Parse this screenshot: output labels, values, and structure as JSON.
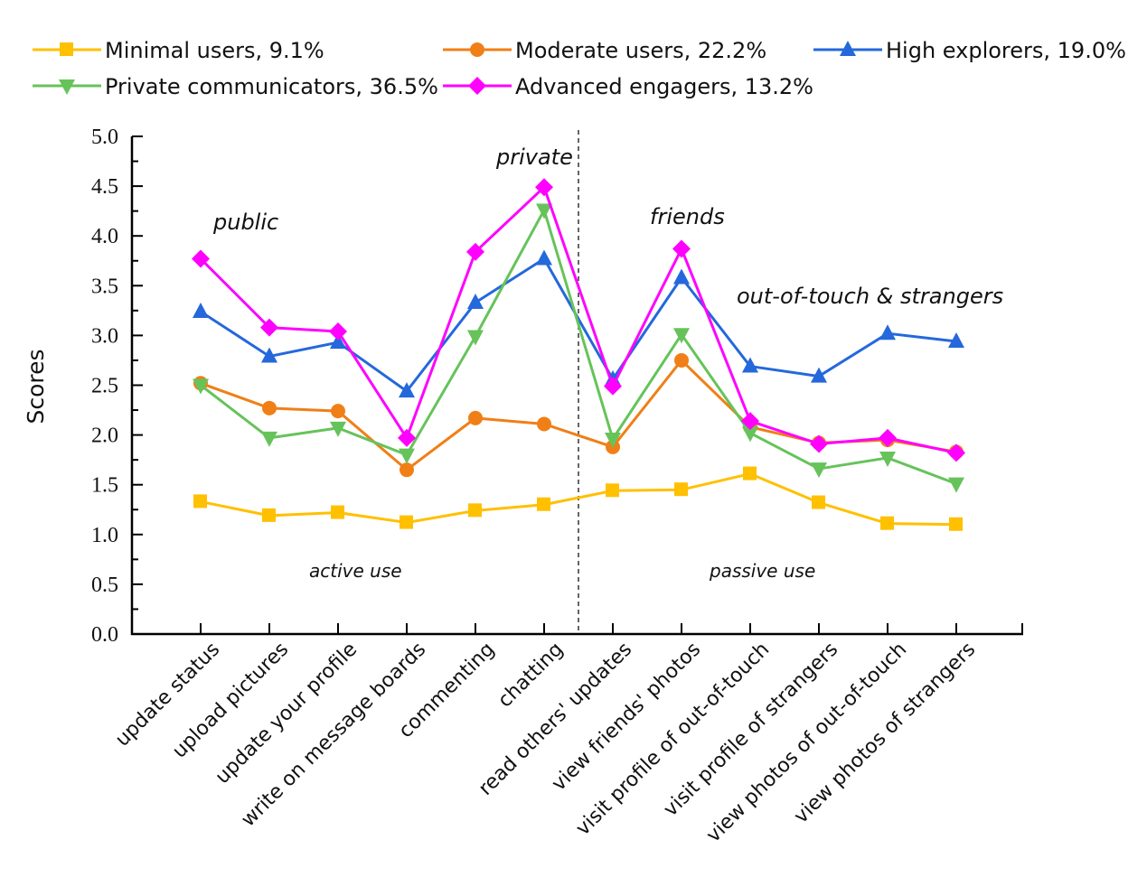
{
  "chart_data": {
    "type": "line",
    "title": "",
    "xlabel": "",
    "ylabel": "Scores",
    "ylim": [
      0.0,
      5.0
    ],
    "yticks": [
      "0.0",
      "0.5",
      "1.0",
      "1.5",
      "2.0",
      "2.5",
      "3.0",
      "3.5",
      "4.0",
      "4.5",
      "5.0"
    ],
    "grid": false,
    "legend_position": "top",
    "categories": [
      "update status",
      "upload pictures",
      "update your profile",
      "write on message boards",
      "commenting",
      "chatting",
      "read others' updates",
      "view friends' photos",
      "visit profile of out-of-touch",
      "visit profile of strangers",
      "view photos of out-of-touch",
      "view photos of strangers"
    ],
    "series": [
      {
        "name": "Minimal users, 9.1%",
        "color": "#FFC000",
        "marker": "square",
        "values": [
          1.33,
          1.19,
          1.22,
          1.12,
          1.24,
          1.3,
          1.44,
          1.45,
          1.61,
          1.32,
          1.11,
          1.1
        ]
      },
      {
        "name": "Moderate users, 22.2%",
        "color": "#F07F17",
        "marker": "circle",
        "values": [
          2.52,
          2.27,
          2.24,
          1.65,
          2.17,
          2.11,
          1.88,
          2.75,
          2.08,
          1.92,
          1.95,
          1.83
        ]
      },
      {
        "name": "High explorers, 19.0%",
        "color": "#2468DC",
        "marker": "triangle-up",
        "values": [
          3.24,
          2.79,
          2.93,
          2.44,
          3.33,
          3.77,
          2.56,
          3.58,
          2.69,
          2.59,
          3.02,
          2.94
        ]
      },
      {
        "name": "Private communicators, 36.5%",
        "color": "#66C35A",
        "marker": "triangle-down",
        "values": [
          2.5,
          1.97,
          2.07,
          1.8,
          2.99,
          4.26,
          1.96,
          3.01,
          2.02,
          1.66,
          1.77,
          1.51
        ]
      },
      {
        "name": "Advanced engagers, 13.2%",
        "color": "#FF00FF",
        "marker": "diamond",
        "values": [
          3.77,
          3.08,
          3.04,
          1.97,
          3.84,
          4.49,
          2.49,
          3.87,
          2.14,
          1.91,
          1.97,
          1.82
        ]
      }
    ],
    "divider_after_category_index": 5,
    "annotations": {
      "public": "public",
      "private": "private",
      "friends": "friends",
      "out_of_touch_strangers": "out-of-touch & strangers",
      "active_use": "active use",
      "passive_use": "passive use"
    }
  }
}
